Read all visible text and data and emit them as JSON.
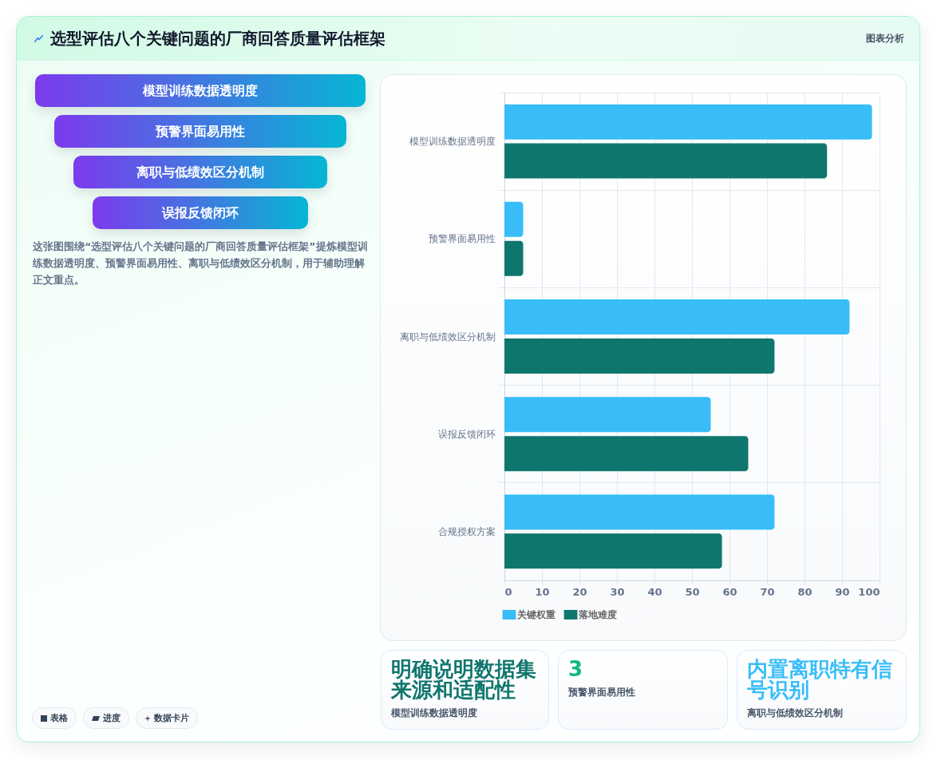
{
  "chart_data": [
    {
      "type": "other",
      "title": "选型评估八个关键问题的厂商回答质量评估框架",
      "annotations": [
        "图表分析"
      ]
    },
    {
      "type": "other",
      "categories": [
        "模型训练数据透明度",
        "预警界面易用性",
        "离职与低绩效区分机制",
        "误报反馈闭环"
      ],
      "annotations": [
        "这张图围绕“选型评估八个关键问题的厂商回答质量评估框架”提炼模型训练数据透明度、预警界面易用性、离职与低绩效区分机制，用于辅助理解正文重点。",
        "表格",
        "进度",
        "数据卡片"
      ]
    },
    {
      "type": "bar",
      "orientation": "horizontal",
      "categories": [
        "模型训练数据透明度",
        "预警界面易用性",
        "离职与低绩效区分机制",
        "误报反馈闭环",
        "合规授权方案"
      ],
      "series": [
        {
          "name": "关键权重",
          "color": "#38bdf8",
          "values": [
            98,
            5,
            92,
            55,
            72
          ]
        },
        {
          "name": "落地难度",
          "color": "#0f766e",
          "values": [
            86,
            5,
            72,
            65,
            58
          ]
        }
      ],
      "xlim": [
        0,
        100
      ],
      "xticks": [
        0,
        10,
        20,
        30,
        40,
        50,
        60,
        70,
        80,
        90,
        100
      ],
      "grid": true,
      "legend": "bottom"
    },
    {
      "type": "other",
      "title": "明确说明数据集来源和适配性",
      "subtitle": "模型训练数据透明度",
      "color": "#0f766e"
    },
    {
      "type": "other",
      "title": "3",
      "subtitle": "预警界面易用性",
      "color": "#10b981"
    },
    {
      "type": "other",
      "title": "内置离职特有信号识别",
      "subtitle": "离职与低绩效区分机制",
      "color": "#38bdf8"
    }
  ]
}
